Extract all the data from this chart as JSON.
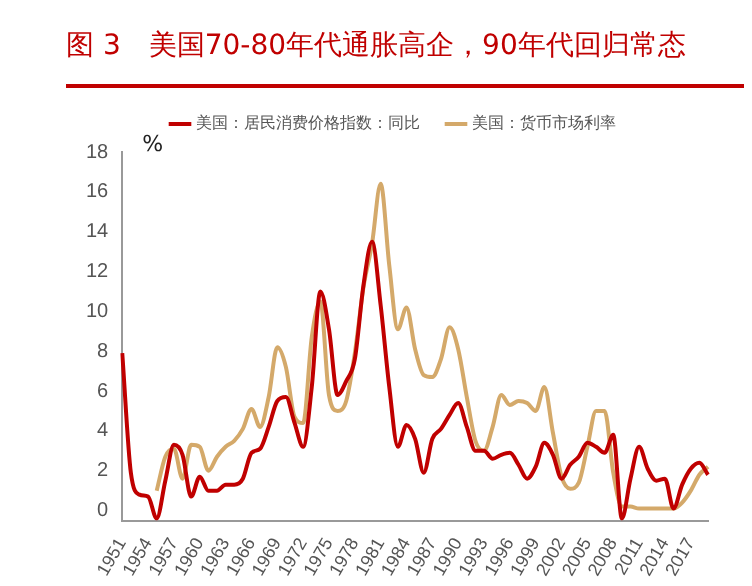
{
  "chart_data": {
    "type": "line",
    "title": "图 3　美国70-80年代通胀高企，90年代回归常态",
    "ylabel": "%",
    "categories": [
      "1951",
      null,
      null,
      "1954",
      null,
      null,
      "1957",
      null,
      null,
      "1960",
      null,
      null,
      "1963",
      null,
      null,
      "1966",
      null,
      null,
      "1969",
      null,
      null,
      "1972",
      null,
      null,
      "1975",
      null,
      null,
      "1978",
      null,
      null,
      "1981",
      null,
      null,
      "1984",
      null,
      null,
      "1987",
      null,
      null,
      "1990",
      null,
      null,
      "1993",
      null,
      null,
      "1996",
      null,
      null,
      "1999",
      null,
      null,
      "2002",
      null,
      null,
      "2005",
      null,
      null,
      "2008",
      null,
      null,
      "2011",
      null,
      null,
      "2014",
      null,
      null,
      "2017",
      null,
      null
    ],
    "series": [
      {
        "name": "美国：居民消费价格指数：同比",
        "color": "#c00000",
        "values": [
          7.9,
          1.9,
          0.8,
          0.7,
          -0.4,
          1.5,
          3.3,
          2.8,
          0.7,
          1.7,
          1.0,
          1.0,
          1.3,
          1.3,
          1.6,
          2.9,
          3.1,
          4.2,
          5.5,
          5.7,
          4.4,
          3.2,
          6.2,
          11.0,
          9.1,
          5.8,
          6.5,
          7.6,
          11.3,
          13.5,
          10.3,
          6.2,
          3.2,
          4.3,
          3.6,
          1.9,
          3.6,
          4.1,
          4.8,
          5.4,
          4.2,
          3.0,
          3.0,
          2.6,
          2.8,
          2.9,
          2.3,
          1.6,
          2.2,
          3.4,
          2.8,
          1.6,
          2.3,
          2.7,
          3.4,
          3.2,
          2.9,
          3.8,
          -0.4,
          1.6,
          3.2,
          2.1,
          1.5,
          1.6,
          0.1,
          1.3,
          2.1,
          2.4,
          1.8
        ]
      },
      {
        "name": "美国：货币市场利率",
        "color": "#d4a96a",
        "values": [
          null,
          null,
          null,
          null,
          1.0,
          2.7,
          3.1,
          1.6,
          3.3,
          3.2,
          2.0,
          2.7,
          3.2,
          3.5,
          4.1,
          5.1,
          4.2,
          5.7,
          8.2,
          7.2,
          4.7,
          4.4,
          8.7,
          10.5,
          5.8,
          5.0,
          5.5,
          7.9,
          11.2,
          13.4,
          16.4,
          12.3,
          9.1,
          10.2,
          8.1,
          6.8,
          6.7,
          7.6,
          9.2,
          8.1,
          5.7,
          3.5,
          3.0,
          4.2,
          5.8,
          5.3,
          5.5,
          5.4,
          5.0,
          6.2,
          3.9,
          1.7,
          1.1,
          1.4,
          3.2,
          5.0,
          5.0,
          1.9,
          0.2,
          0.2,
          0.1,
          0.1,
          0.1,
          0.1,
          0.1,
          0.4,
          1.0,
          1.8,
          2.2
        ]
      }
    ],
    "ylim": [
      -0.5,
      18
    ],
    "yticks": [
      0,
      2,
      4,
      6,
      8,
      10,
      12,
      14,
      16,
      18
    ],
    "grid": false,
    "legend": "top"
  }
}
